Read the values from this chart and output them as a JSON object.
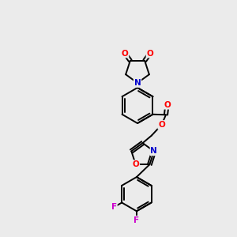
{
  "background_color": "#ebebeb",
  "bond_color": "#000000",
  "atom_colors": {
    "O": "#ff0000",
    "N": "#0000cc",
    "F": "#cc00cc",
    "C": "#000000"
  },
  "figsize": [
    3.0,
    3.0
  ],
  "dpi": 100,
  "lw": 1.4,
  "fontsize": 7.5
}
